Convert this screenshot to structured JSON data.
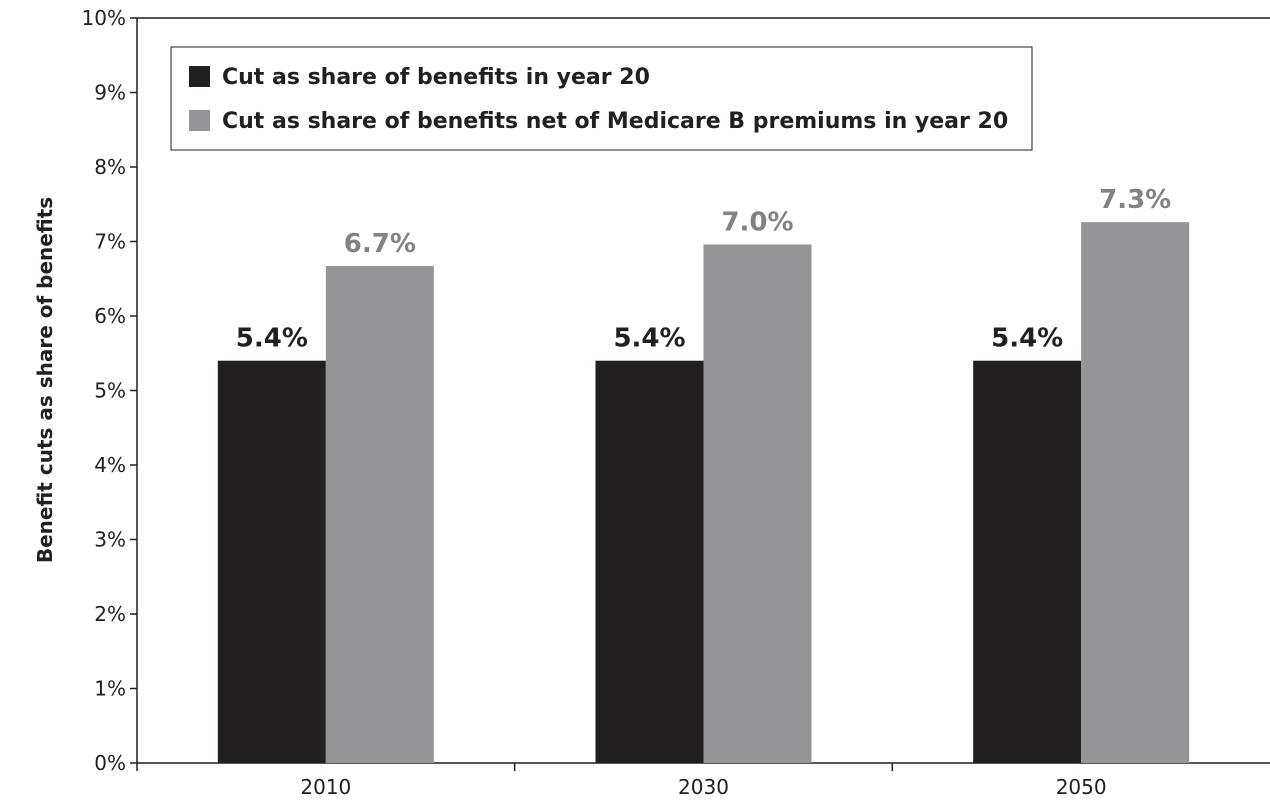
{
  "chart_data": {
    "type": "bar",
    "categories": [
      "2010",
      "2030",
      "2050"
    ],
    "series": [
      {
        "name": "Cut as share of benefits in year 20",
        "values": [
          5.4,
          5.4,
          5.4
        ],
        "labels": [
          "5.4%",
          "5.4%",
          "5.4%"
        ],
        "color": "#231f20"
      },
      {
        "name": "Cut as share of benefits net of Medicare B premiums in year 20",
        "values": [
          6.67,
          6.96,
          7.26
        ],
        "labels": [
          "6.7%",
          "7.0%",
          "7.3%"
        ],
        "color": "#939598"
      }
    ],
    "ylabel": "Benefit cuts as share of benefits",
    "ylim": [
      0,
      10
    ],
    "yticks": [
      "0%",
      "1%",
      "2%",
      "3%",
      "4%",
      "5%",
      "6%",
      "7%",
      "8%",
      "9%",
      "10%"
    ],
    "grid": false,
    "legend_position": "top-left"
  }
}
